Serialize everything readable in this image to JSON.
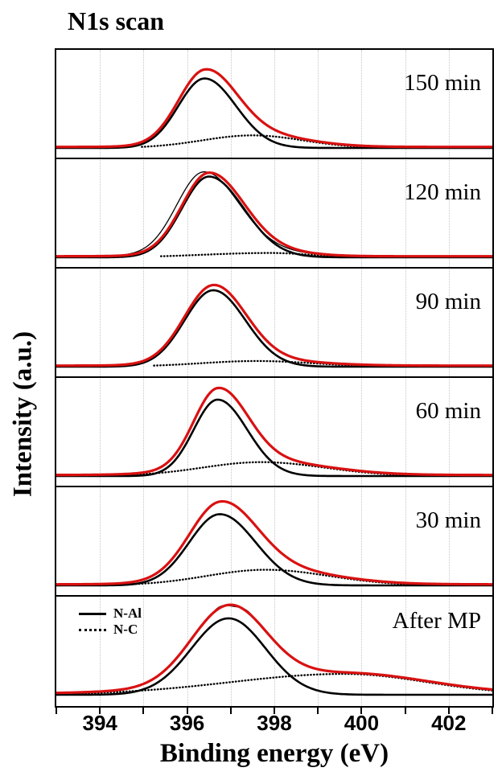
{
  "chart_data": {
    "type": "line",
    "title": "N1s scan",
    "xlabel": "Binding energy (eV)",
    "ylabel": "Intensity (a.u.)",
    "x_range_ev": [
      393,
      403
    ],
    "x_major_ticks": [
      394,
      396,
      398,
      400,
      402
    ],
    "x_tick_labels": [
      "394",
      "396",
      "398",
      "400",
      "402"
    ],
    "x_minor_ticks": [
      393,
      395,
      397,
      399,
      401,
      403
    ],
    "gridlines_ev": [
      394,
      395,
      396,
      397,
      398,
      399,
      400,
      401,
      402
    ],
    "grid": "vertical-dotted",
    "legend_position": "bottom-panel-top-left",
    "legend": [
      {
        "label": "N-Al",
        "line_style": "solid"
      },
      {
        "label": "N-C",
        "line_style": "dotted"
      }
    ],
    "colors": {
      "envelope": "#d91111",
      "component": "#000000",
      "gridline": "#c6c6c6"
    },
    "envelope_baseline_offset": 0.012,
    "panels": [
      {
        "label": "150 min",
        "n_al": {
          "center": 396.4,
          "amp": 0.8,
          "sigma_left": 0.6,
          "sigma_right": 0.72
        },
        "n_c": {
          "center": 397.5,
          "amp": 0.145,
          "sigma_left": 1.15,
          "sigma_right": 1.15
        }
      },
      {
        "label": "120 min",
        "n_al": {
          "center": 396.5,
          "amp": 0.93,
          "sigma_left": 0.62,
          "sigma_right": 0.8
        },
        "n_c": {
          "center": 397.9,
          "amp": 0.05,
          "sigma_left": 1.5,
          "sigma_right": 0.9
        },
        "raw": {
          "shift": 0.12,
          "scale": 1.01,
          "wiggle": 0
        }
      },
      {
        "label": "90 min",
        "n_al": {
          "center": 396.6,
          "amp": 0.88,
          "sigma_left": 0.66,
          "sigma_right": 0.74
        },
        "n_c": {
          "center": 397.6,
          "amp": 0.065,
          "sigma_left": 1.3,
          "sigma_right": 1.3
        }
      },
      {
        "label": "60 min",
        "n_al": {
          "center": 396.7,
          "amp": 0.88,
          "sigma_left": 0.55,
          "sigma_right": 0.68
        },
        "n_c": {
          "center": 397.7,
          "amp": 0.16,
          "sigma_left": 1.35,
          "sigma_right": 1.45
        }
      },
      {
        "label": "30 min",
        "n_al": {
          "center": 396.75,
          "amp": 0.82,
          "sigma_left": 0.7,
          "sigma_right": 0.82
        },
        "n_c": {
          "center": 397.8,
          "amp": 0.18,
          "sigma_left": 1.35,
          "sigma_right": 1.45
        }
      },
      {
        "label": "After MP",
        "n_al": {
          "center": 396.95,
          "amp": 0.88,
          "sigma_left": 0.85,
          "sigma_right": 0.85
        },
        "n_c": {
          "center": 399.6,
          "amp": 0.24,
          "sigma_left": 2.6,
          "sigma_right": 1.9
        },
        "raw": {
          "shift": 0.0,
          "scale": 1.0,
          "wiggle": 0.015
        },
        "legend_here": true
      }
    ]
  }
}
